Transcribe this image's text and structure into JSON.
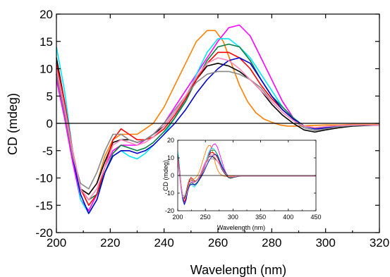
{
  "chart_data": [
    {
      "type": "line",
      "role": "main",
      "xlabel": "Wavelength (nm)",
      "ylabel": "CD (mdeg)",
      "xlim": [
        200,
        320
      ],
      "ylim": [
        -20,
        20
      ],
      "xticks": [
        200,
        220,
        240,
        260,
        280,
        300,
        320
      ],
      "yticks": [
        -20,
        -15,
        -10,
        -5,
        0,
        5,
        10,
        15,
        20
      ],
      "zero_line": true,
      "grid": false,
      "series": [
        {
          "color": "#ff7f00",
          "x": [
            200,
            203,
            206,
            209,
            212,
            215,
            218,
            221,
            224,
            227,
            230,
            233,
            236,
            240,
            244,
            248,
            252,
            256,
            259,
            262,
            265,
            268,
            271,
            274,
            277,
            280,
            283,
            286,
            290,
            295,
            300,
            305,
            310,
            315,
            320
          ],
          "y": [
            9,
            2,
            -6,
            -12,
            -13,
            -11,
            -6,
            -3,
            -2,
            -2,
            -2,
            -1,
            0,
            3,
            7,
            11,
            15,
            17,
            17,
            15,
            11,
            7,
            4,
            2,
            0.8,
            0.2,
            -0.3,
            -0.5,
            -0.5,
            -0.4,
            -0.3,
            -0.3,
            -0.2,
            -0.2,
            -0.2
          ]
        },
        {
          "color": "#ff00ff",
          "x": [
            200,
            203,
            206,
            209,
            212,
            215,
            218,
            221,
            224,
            227,
            230,
            233,
            236,
            240,
            244,
            248,
            252,
            256,
            260,
            264,
            268,
            272,
            276,
            280,
            284,
            288,
            292,
            296,
            300,
            305,
            310,
            315,
            320
          ],
          "y": [
            8,
            1,
            -7,
            -14,
            -16,
            -13,
            -8,
            -5,
            -4,
            -4,
            -4,
            -3,
            -2,
            0,
            3,
            6,
            9,
            12,
            15,
            17.5,
            18,
            16,
            12,
            8,
            4,
            1,
            -0.5,
            -1,
            -1,
            -0.6,
            -0.4,
            -0.3,
            -0.3
          ]
        },
        {
          "color": "#00e5ff",
          "x": [
            200,
            203,
            206,
            209,
            212,
            215,
            218,
            221,
            224,
            227,
            230,
            233,
            236,
            240,
            244,
            248,
            252,
            256,
            260,
            264,
            268,
            272,
            276,
            280,
            284,
            288,
            292,
            296,
            300,
            305,
            310,
            315,
            320
          ],
          "y": [
            14,
            6,
            -5,
            -14,
            -16.5,
            -14,
            -9,
            -6,
            -5,
            -6,
            -6.5,
            -5.5,
            -4,
            -2,
            1,
            4.5,
            9,
            13,
            15.5,
            15.5,
            14,
            12,
            9,
            6,
            3,
            1,
            -0.5,
            -1,
            -0.8,
            -0.5,
            -0.4,
            -0.3,
            -0.3
          ]
        },
        {
          "color": "#008040",
          "x": [
            200,
            203,
            206,
            209,
            212,
            215,
            218,
            221,
            224,
            227,
            230,
            233,
            236,
            240,
            244,
            248,
            252,
            256,
            260,
            264,
            268,
            272,
            276,
            280,
            284,
            288,
            292,
            296,
            300,
            305,
            310,
            315,
            320
          ],
          "y": [
            10,
            3,
            -5,
            -12,
            -14,
            -13,
            -9,
            -5.5,
            -4,
            -4.5,
            -5,
            -4.5,
            -3.5,
            -1.5,
            1,
            4,
            8,
            11.5,
            14,
            14.5,
            14,
            11.5,
            8,
            5,
            3,
            1,
            -0.5,
            -1,
            -0.8,
            -0.6,
            -0.4,
            -0.3,
            -0.3
          ]
        },
        {
          "color": "#000000",
          "x": [
            200,
            203,
            206,
            209,
            212,
            215,
            218,
            221,
            224,
            227,
            230,
            233,
            236,
            240,
            244,
            248,
            252,
            256,
            260,
            264,
            268,
            272,
            276,
            280,
            284,
            288,
            292,
            296,
            300,
            305,
            310,
            315,
            320
          ],
          "y": [
            12,
            4,
            -5,
            -12,
            -13,
            -11,
            -7,
            -3.5,
            -3,
            -3,
            -3.5,
            -3,
            -2,
            -0.5,
            2,
            5,
            8,
            10.5,
            11,
            10.5,
            9.5,
            8,
            6,
            3.5,
            1.5,
            0,
            -1.2,
            -1.6,
            -1.2,
            -0.8,
            -0.5,
            -0.4,
            -0.3
          ]
        },
        {
          "color": "#ff0000",
          "x": [
            200,
            203,
            206,
            209,
            212,
            215,
            218,
            221,
            224,
            227,
            230,
            233,
            236,
            240,
            244,
            248,
            252,
            256,
            260,
            264,
            268,
            272,
            276,
            280,
            284,
            288,
            292,
            296,
            300,
            305,
            310,
            315,
            320
          ],
          "y": [
            11,
            4,
            -5,
            -12,
            -15,
            -13,
            -8,
            -3,
            -1,
            -2,
            -3,
            -3,
            -2.5,
            -1,
            1.5,
            4.5,
            8,
            11,
            13,
            13,
            12,
            10,
            7,
            4.5,
            2.5,
            0.8,
            -0.5,
            -0.8,
            -0.6,
            -0.4,
            -0.3,
            -0.3,
            -0.3
          ]
        },
        {
          "color": "#0000cc",
          "x": [
            200,
            203,
            206,
            209,
            212,
            215,
            218,
            221,
            224,
            227,
            230,
            233,
            236,
            240,
            244,
            248,
            252,
            256,
            260,
            264,
            268,
            272,
            276,
            280,
            284,
            288,
            292,
            296,
            300,
            305,
            310,
            315,
            320
          ],
          "y": [
            9,
            2,
            -6,
            -13,
            -16.5,
            -14,
            -9,
            -6,
            -5,
            -5,
            -5.5,
            -5,
            -4,
            -2,
            0,
            2.5,
            5.5,
            8,
            10,
            11.5,
            12,
            11,
            8,
            5,
            2.5,
            0.8,
            -0.5,
            -1,
            -0.8,
            -0.5,
            -0.4,
            -0.3,
            -0.3
          ]
        },
        {
          "color": "#888888",
          "x": [
            200,
            203,
            206,
            209,
            212,
            215,
            218,
            221,
            224,
            227,
            230,
            233,
            236,
            240,
            244,
            248,
            252,
            256,
            260,
            264,
            268,
            272,
            276,
            280,
            284,
            288,
            292,
            296,
            300,
            305,
            310,
            315,
            320
          ],
          "y": [
            9,
            2,
            -6,
            -11,
            -12,
            -9,
            -5,
            -2,
            -2,
            -3,
            -3.5,
            -3,
            -2,
            0,
            2.5,
            5,
            7.5,
            9,
            9.5,
            9.5,
            9,
            8,
            6.5,
            4,
            2,
            0.5,
            -0.8,
            -1.3,
            -1,
            -0.6,
            -0.4,
            -0.3,
            -0.3
          ]
        },
        {
          "color": "#ff88bb",
          "x": [
            200,
            203,
            206,
            209,
            212,
            215,
            218,
            221,
            224,
            227,
            230,
            233,
            236,
            240,
            244,
            248,
            252,
            256,
            260,
            264,
            268,
            272,
            276,
            280,
            284,
            288,
            292,
            296,
            300,
            305,
            310,
            315,
            320
          ],
          "y": [
            10,
            3,
            -5,
            -12,
            -14,
            -12,
            -8,
            -4,
            -3,
            -3.5,
            -4,
            -3.5,
            -2.5,
            -0.5,
            2,
            5,
            8.5,
            11,
            12,
            11.5,
            10,
            8,
            6,
            4,
            2,
            0.5,
            -0.5,
            -0.8,
            -0.6,
            -0.4,
            -0.3,
            -0.3,
            -0.3
          ]
        }
      ]
    },
    {
      "type": "line",
      "role": "inset",
      "xlabel": "Wavelength (nm)",
      "ylabel": "CD (mdeg)",
      "xlim": [
        200,
        450
      ],
      "ylim": [
        -20,
        20
      ],
      "xticks": [
        200,
        250,
        300,
        350,
        400,
        450
      ],
      "yticks": [
        -20,
        -10,
        0,
        10,
        20
      ],
      "zero_line": true,
      "grid": false,
      "series_same_as_main_extended_flat_to": 450
    }
  ]
}
